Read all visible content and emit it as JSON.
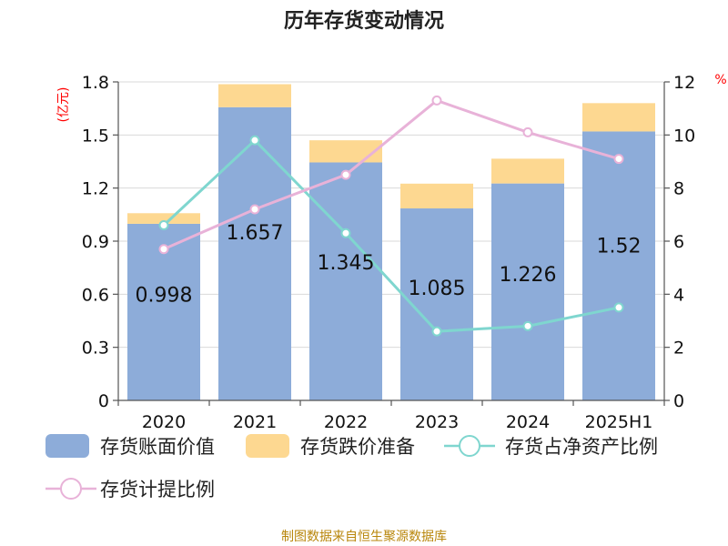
{
  "chart_data": {
    "type": "bar",
    "title": "历年存货变动情况",
    "categories": [
      "2020",
      "2021",
      "2022",
      "2023",
      "2024",
      "2025H1"
    ],
    "left_axis": {
      "unit": "(亿元)",
      "ylim": [
        0,
        1.8
      ],
      "ticks": [
        "0",
        "0.3",
        "0.6",
        "0.9",
        "1.2",
        "1.5",
        "1.8"
      ]
    },
    "right_axis": {
      "unit": "%",
      "ylim": [
        0,
        12
      ],
      "ticks": [
        "0",
        "2",
        "4",
        "6",
        "8",
        "10",
        "12"
      ]
    },
    "series": [
      {
        "name": "存货账面价值",
        "type": "bar",
        "stack": "inventory",
        "axis": "left",
        "color": "#8dacd9",
        "values": [
          0.998,
          1.657,
          1.345,
          1.085,
          1.226,
          1.52
        ],
        "labels": [
          "0.998",
          "1.657",
          "1.345",
          "1.085",
          "1.226",
          "1.52"
        ]
      },
      {
        "name": "存货跌价准备",
        "type": "bar",
        "stack": "inventory",
        "axis": "left",
        "color": "#fdd891",
        "values": [
          0.06,
          0.13,
          0.125,
          0.14,
          0.14,
          0.16
        ]
      },
      {
        "name": "存货占净资产比例",
        "type": "line",
        "axis": "right",
        "color": "#7fd6cf",
        "values": [
          6.6,
          9.8,
          6.3,
          2.6,
          2.8,
          3.5
        ]
      },
      {
        "name": "存货计提比例",
        "type": "line",
        "axis": "right",
        "color": "#e8b2d8",
        "values": [
          5.7,
          7.2,
          8.5,
          11.3,
          10.1,
          9.1
        ]
      }
    ],
    "grid": true,
    "legend_position": "bottom"
  },
  "footer": "制图数据来自恒生聚源数据库"
}
